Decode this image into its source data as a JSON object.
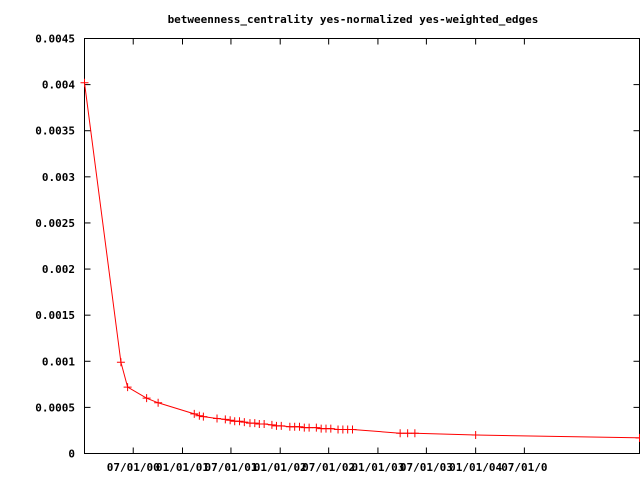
{
  "chart_data": {
    "type": "line",
    "title": "betweenness_centrality yes-normalized yes-weighted_edges",
    "xlabel": "",
    "ylabel": "",
    "ylim": [
      0,
      0.0045
    ],
    "yticks": [
      "0",
      "0.0005",
      "0.001",
      "0.0015",
      "0.002",
      "0.0025",
      "0.003",
      "0.0035",
      "0.004",
      "0.0045"
    ],
    "xlim": [
      "2000-01-01",
      "2005-09-04"
    ],
    "xticks": [
      {
        "date": "2000-07-01",
        "label": "07/01/00"
      },
      {
        "date": "2001-01-01",
        "label": "01/01/01"
      },
      {
        "date": "2001-07-01",
        "label": "07/01/01"
      },
      {
        "date": "2002-01-01",
        "label": "01/01/02"
      },
      {
        "date": "2002-07-01",
        "label": "07/01/02"
      },
      {
        "date": "2003-01-01",
        "label": "01/01/03"
      },
      {
        "date": "2003-07-01",
        "label": "07/01/03"
      },
      {
        "date": "2004-01-01",
        "label": "01/01/04"
      },
      {
        "date": "2004-07-01",
        "label": "07/01/0"
      }
    ],
    "grid": false,
    "series": [
      {
        "color": "#ff0000",
        "marker": "plus",
        "points": [
          {
            "x": "2000-01-01",
            "y": 0.00402
          },
          {
            "x": "2000-05-16",
            "y": 0.00099
          },
          {
            "x": "2000-06-10",
            "y": 0.00072
          },
          {
            "x": "2000-08-20",
            "y": 0.0006
          },
          {
            "x": "2000-10-02",
            "y": 0.00055
          },
          {
            "x": "2001-02-14",
            "y": 0.00043
          },
          {
            "x": "2001-03-05",
            "y": 0.00041
          },
          {
            "x": "2001-03-20",
            "y": 0.0004
          },
          {
            "x": "2001-05-10",
            "y": 0.00038
          },
          {
            "x": "2001-06-10",
            "y": 0.00037
          },
          {
            "x": "2001-06-28",
            "y": 0.00036
          },
          {
            "x": "2001-07-15",
            "y": 0.00035
          },
          {
            "x": "2001-08-02",
            "y": 0.00035
          },
          {
            "x": "2001-08-20",
            "y": 0.00034
          },
          {
            "x": "2001-09-10",
            "y": 0.00033
          },
          {
            "x": "2001-09-28",
            "y": 0.00033
          },
          {
            "x": "2001-10-15",
            "y": 0.00032
          },
          {
            "x": "2001-11-02",
            "y": 0.00032
          },
          {
            "x": "2001-12-01",
            "y": 0.00031
          },
          {
            "x": "2001-12-18",
            "y": 0.0003
          },
          {
            "x": "2002-01-05",
            "y": 0.0003
          },
          {
            "x": "2002-02-06",
            "y": 0.00029
          },
          {
            "x": "2002-02-24",
            "y": 0.00029
          },
          {
            "x": "2002-03-14",
            "y": 0.00029
          },
          {
            "x": "2002-04-01",
            "y": 0.00028
          },
          {
            "x": "2002-04-19",
            "y": 0.00028
          },
          {
            "x": "2002-05-16",
            "y": 0.00028
          },
          {
            "x": "2002-06-03",
            "y": 0.00027
          },
          {
            "x": "2002-06-21",
            "y": 0.00027
          },
          {
            "x": "2002-07-09",
            "y": 0.00027
          },
          {
            "x": "2002-08-05",
            "y": 0.00026
          },
          {
            "x": "2002-08-23",
            "y": 0.00026
          },
          {
            "x": "2002-09-10",
            "y": 0.00026
          },
          {
            "x": "2002-09-28",
            "y": 0.00026
          },
          {
            "x": "2003-03-25",
            "y": 0.00022
          },
          {
            "x": "2003-04-22",
            "y": 0.00022
          },
          {
            "x": "2003-05-19",
            "y": 0.00022
          },
          {
            "x": "2004-01-01",
            "y": 0.0002
          },
          {
            "x": "2005-09-04",
            "y": 0.00017
          }
        ]
      }
    ]
  }
}
